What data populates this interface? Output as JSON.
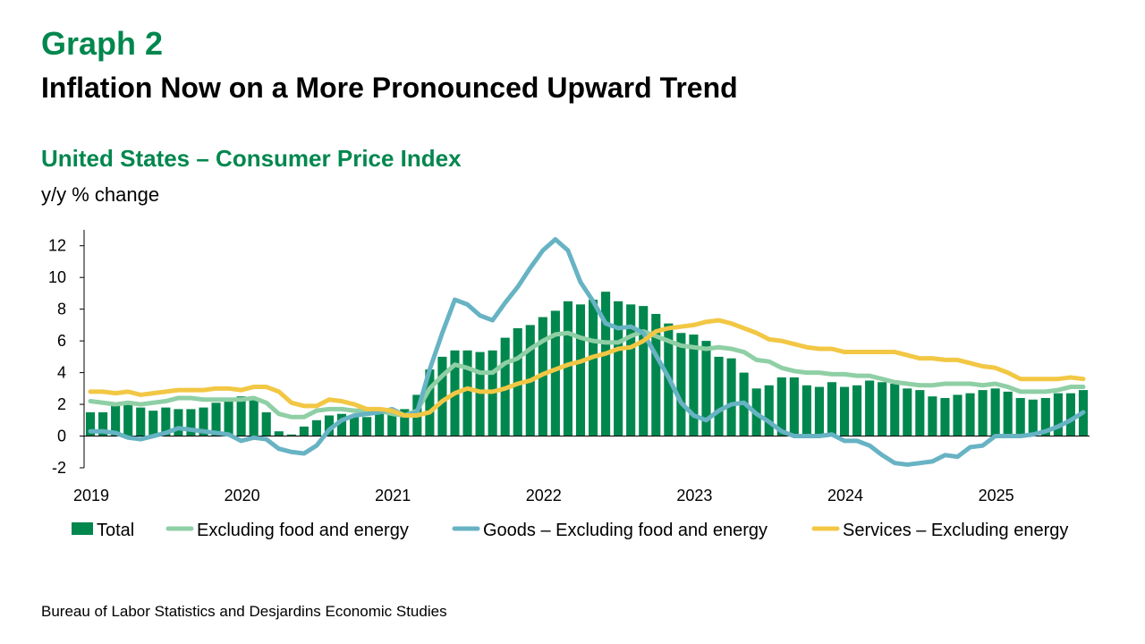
{
  "header": {
    "graph_number": "Graph 2",
    "title": "Inflation Now on a More Pronounced Upward Trend",
    "subtitle": "United States – Consumer Price Index",
    "unit": "y/y % change"
  },
  "source": "Bureau of Labor Statistics and Desjardins Economic Studies",
  "colors": {
    "total": "#00874e",
    "core": "#8fcfa5",
    "goods": "#67b3c4",
    "services": "#f2c744"
  },
  "chart_data": {
    "type": "bar",
    "start": "2019-01",
    "months": 80,
    "ylim": [
      -2,
      13
    ],
    "y_ticks": [
      "-2",
      "0",
      "2",
      "4",
      "6",
      "8",
      "10",
      "12"
    ],
    "x_ticks": [
      "2019",
      "2020",
      "2021",
      "2022",
      "2023",
      "2024",
      "2025"
    ],
    "series": [
      {
        "name": "Total",
        "kind": "bar",
        "color": "#00874e",
        "values": [
          1.5,
          1.5,
          1.9,
          2.0,
          1.8,
          1.6,
          1.8,
          1.7,
          1.7,
          1.8,
          2.1,
          2.3,
          2.5,
          2.3,
          1.5,
          0.3,
          0.1,
          0.6,
          1.0,
          1.3,
          1.4,
          1.2,
          1.2,
          1.4,
          1.4,
          1.7,
          2.6,
          4.2,
          5.0,
          5.4,
          5.4,
          5.3,
          5.4,
          6.2,
          6.8,
          7.0,
          7.5,
          7.9,
          8.5,
          8.3,
          8.6,
          9.1,
          8.5,
          8.3,
          8.2,
          7.7,
          7.1,
          6.5,
          6.4,
          6.0,
          5.0,
          4.9,
          4.0,
          3.0,
          3.2,
          3.7,
          3.7,
          3.2,
          3.1,
          3.4,
          3.1,
          3.2,
          3.5,
          3.4,
          3.3,
          3.0,
          2.9,
          2.5,
          2.4,
          2.6,
          2.7,
          2.9,
          3.0,
          2.8,
          2.4,
          2.3,
          2.4,
          2.7,
          2.7,
          2.9
        ]
      },
      {
        "name": "Excluding food and energy",
        "kind": "line",
        "color": "#8fcfa5",
        "values": [
          2.2,
          2.1,
          2.0,
          2.1,
          2.0,
          2.1,
          2.2,
          2.4,
          2.4,
          2.3,
          2.3,
          2.3,
          2.3,
          2.4,
          2.1,
          1.4,
          1.2,
          1.2,
          1.6,
          1.7,
          1.7,
          1.6,
          1.6,
          1.6,
          1.4,
          1.3,
          1.6,
          3.0,
          3.8,
          4.5,
          4.3,
          4.0,
          4.0,
          4.6,
          4.9,
          5.5,
          6.0,
          6.4,
          6.5,
          6.2,
          6.0,
          5.9,
          5.9,
          6.3,
          6.6,
          6.3,
          6.0,
          5.7,
          5.6,
          5.5,
          5.6,
          5.5,
          5.3,
          4.8,
          4.7,
          4.3,
          4.1,
          4.0,
          4.0,
          3.9,
          3.9,
          3.8,
          3.8,
          3.6,
          3.4,
          3.3,
          3.2,
          3.2,
          3.3,
          3.3,
          3.3,
          3.2,
          3.3,
          3.1,
          2.8,
          2.8,
          2.8,
          2.9,
          3.1,
          3.1
        ]
      },
      {
        "name": "Goods – Excluding food and energy",
        "kind": "line",
        "color": "#67b3c4",
        "values": [
          0.3,
          0.3,
          0.2,
          -0.1,
          -0.2,
          0.0,
          0.2,
          0.5,
          0.4,
          0.3,
          0.2,
          0.1,
          -0.3,
          -0.1,
          -0.2,
          -0.8,
          -1.0,
          -1.1,
          -0.6,
          0.4,
          1.0,
          1.3,
          1.4,
          1.5,
          1.7,
          1.3,
          1.5,
          4.2,
          6.5,
          8.6,
          8.3,
          7.6,
          7.3,
          8.4,
          9.4,
          10.6,
          11.7,
          12.4,
          11.7,
          9.7,
          8.5,
          7.1,
          6.8,
          6.9,
          6.5,
          5.1,
          3.7,
          2.1,
          1.3,
          1.0,
          1.6,
          2.0,
          2.1,
          1.4,
          0.9,
          0.3,
          0.0,
          0.0,
          0.0,
          0.1,
          -0.3,
          -0.3,
          -0.6,
          -1.2,
          -1.7,
          -1.8,
          -1.7,
          -1.6,
          -1.2,
          -1.3,
          -0.7,
          -0.6,
          0.0,
          0.0,
          0.0,
          0.1,
          0.3,
          0.6,
          1.0,
          1.5
        ]
      },
      {
        "name": "Services – Excluding energy",
        "kind": "line",
        "color": "#f2c744",
        "values": [
          2.8,
          2.8,
          2.7,
          2.8,
          2.6,
          2.7,
          2.8,
          2.9,
          2.9,
          2.9,
          3.0,
          3.0,
          2.9,
          3.1,
          3.1,
          2.8,
          2.1,
          1.9,
          1.9,
          2.3,
          2.2,
          2.0,
          1.7,
          1.7,
          1.6,
          1.3,
          1.3,
          1.5,
          2.2,
          2.7,
          3.0,
          2.8,
          2.8,
          3.0,
          3.3,
          3.5,
          3.9,
          4.2,
          4.5,
          4.7,
          5.0,
          5.2,
          5.5,
          5.6,
          6.0,
          6.6,
          6.8,
          6.9,
          7.0,
          7.2,
          7.3,
          7.1,
          6.8,
          6.5,
          6.1,
          6.0,
          5.8,
          5.6,
          5.5,
          5.5,
          5.3,
          5.3,
          5.3,
          5.3,
          5.3,
          5.1,
          4.9,
          4.9,
          4.8,
          4.8,
          4.6,
          4.4,
          4.3,
          4.0,
          3.6,
          3.6,
          3.6,
          3.6,
          3.7,
          3.6
        ]
      }
    ]
  }
}
